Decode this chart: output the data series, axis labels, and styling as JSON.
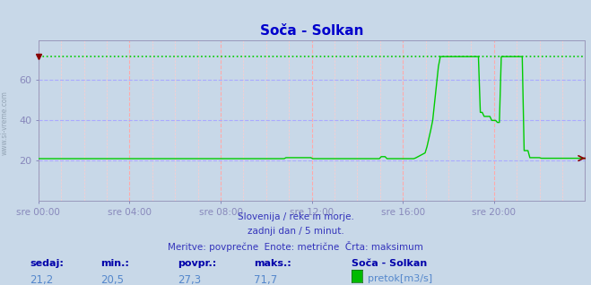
{
  "title": "Soča - Solkan",
  "bg_color": "#c8d8e8",
  "plot_bg_color": "#c8d8e8",
  "line_color": "#00cc00",
  "max_line_color": "#00cc00",
  "axis_color": "#8888bb",
  "grid_color_v": "#ffaaaa",
  "grid_color_h": "#aaaaff",
  "title_color": "#0000cc",
  "text_color": "#0000cc",
  "ylim": [
    0,
    80
  ],
  "yticks": [
    20,
    40,
    60
  ],
  "xlabel_times": [
    "sre 00:00",
    "sre 04:00",
    "sre 08:00",
    "sre 12:00",
    "sre 16:00",
    "sre 20:00"
  ],
  "n_points": 288,
  "max_value": 71.7,
  "sedaj": "21,2",
  "min_val": "20,5",
  "povpr": "27,3",
  "maks": "71,7",
  "station": "Soča - Solkan",
  "legend_label": "pretok[m3/s]",
  "legend_color": "#00bb00",
  "subtitle1": "Slovenija / reke in morje.",
  "subtitle2": "zadnji dan / 5 minut.",
  "subtitle3": "Meritve: povprečne  Enote: metrične  Črta: maksimum",
  "label_sedaj": "sedaj:",
  "label_min": "min.:",
  "label_povpr": "povpr.:",
  "label_maks": "maks.:",
  "watermark": "www.si-vreme.com"
}
